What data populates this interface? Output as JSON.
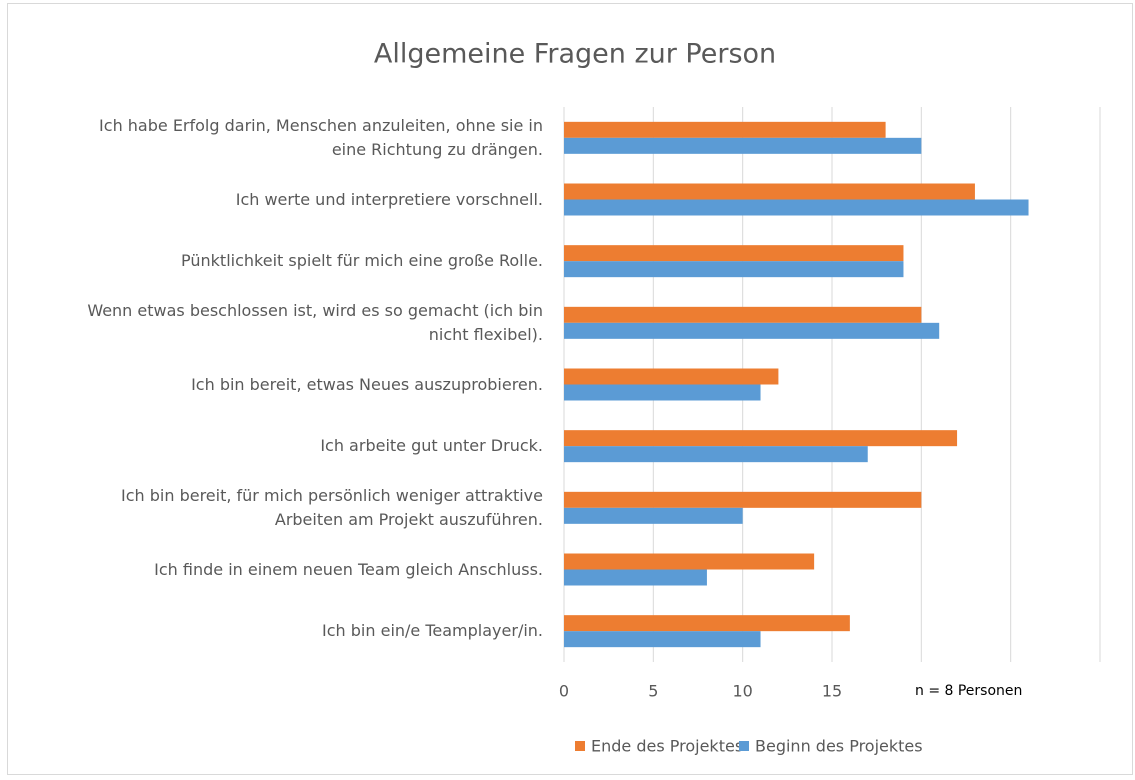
{
  "chart_data": {
    "type": "hbar",
    "title": "Allgemeine Fragen zur Person",
    "categories": [
      "Ich habe Erfolg darin, Menschen anzuleiten, ohne sie in eine Richtung zu drängen.",
      "Ich werte und interpretiere vorschnell.",
      "Pünktlichkeit spielt für mich eine große Rolle.",
      "Wenn etwas beschlossen ist, wird es so gemacht (ich bin nicht flexibel).",
      "Ich bin bereit, etwas Neues auszuprobieren.",
      "Ich arbeite gut unter Druck.",
      "Ich bin bereit, für mich persönlich weniger attraktive Arbeiten am Projekt auszuführen.",
      "Ich finde in einem neuen Team gleich Anschluss.",
      "Ich bin ein/e Teamplayer/in."
    ],
    "series": [
      {
        "name": "Ende des Projektes",
        "color": "#ed7d31",
        "values": [
          18,
          23,
          19,
          20,
          12,
          22,
          20,
          14,
          16
        ]
      },
      {
        "name": "Beginn des Projektes",
        "color": "#5b9bd5",
        "values": [
          20,
          26,
          19,
          21,
          11,
          17,
          10,
          8,
          11
        ]
      }
    ],
    "xlim": [
      0,
      30
    ],
    "xticks": [
      0,
      5,
      10,
      15
    ],
    "xgrid": [
      0,
      5,
      10,
      15,
      20,
      25,
      30
    ],
    "annotation": "n = 8 Personen",
    "legend": "bottom"
  }
}
